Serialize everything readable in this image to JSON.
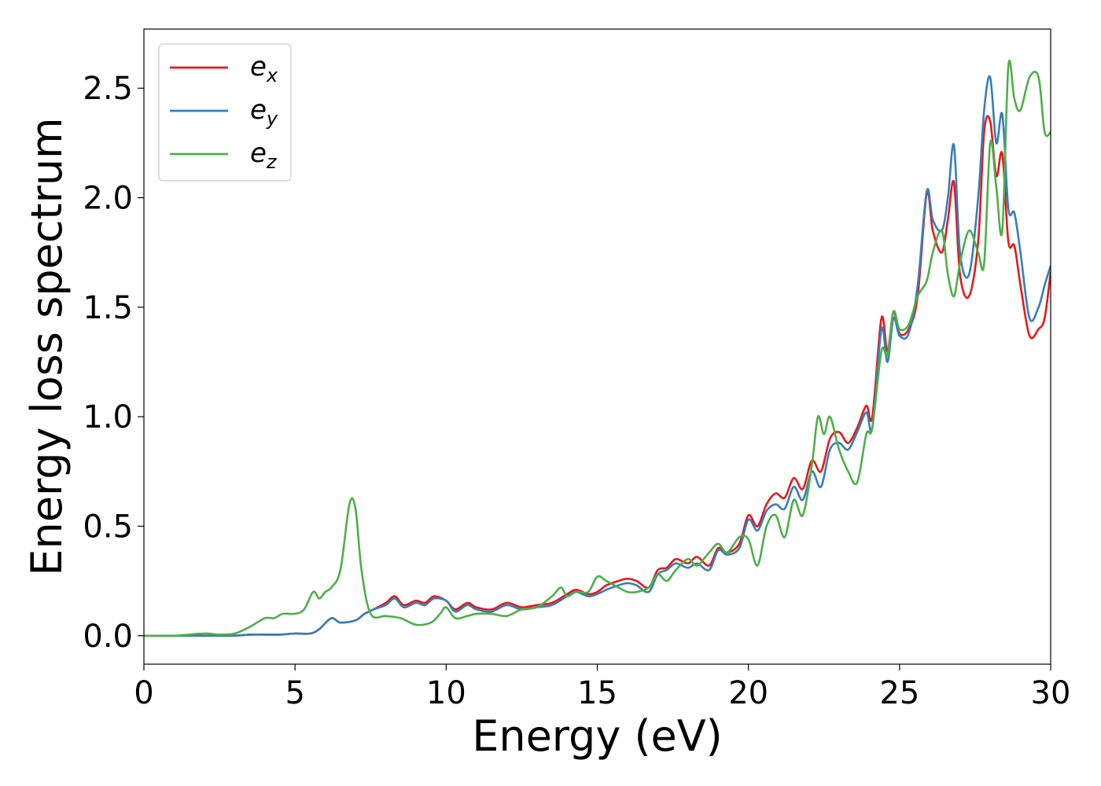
{
  "chart_data": {
    "type": "line",
    "xlabel": "Energy (eV)",
    "ylabel": "Energy loss spectrum",
    "xlim": [
      0,
      30
    ],
    "ylim": [
      -0.13,
      2.77
    ],
    "xticks": [
      "0",
      "5",
      "10",
      "15",
      "20",
      "25",
      "30"
    ],
    "xtick_values": [
      0,
      5,
      10,
      15,
      20,
      25,
      30
    ],
    "yticks": [
      "0.0",
      "0.5",
      "1.0",
      "1.5",
      "2.0",
      "2.5"
    ],
    "ytick_values": [
      0.0,
      0.5,
      1.0,
      1.5,
      2.0,
      2.5
    ],
    "grid": false,
    "legend_position": "top-left",
    "series": [
      {
        "name": "e_x",
        "label_base": "e",
        "label_sub": "x",
        "color": "#e41a1c",
        "x": [
          0,
          1,
          2,
          3,
          3.5,
          4,
          4.5,
          5,
          5.5,
          5.8,
          6.2,
          6.5,
          7,
          7.3,
          7.6,
          8,
          8.3,
          8.6,
          9,
          9.3,
          9.6,
          10,
          10.3,
          10.7,
          11,
          11.5,
          12,
          12.5,
          13,
          13.5,
          14,
          14.3,
          14.7,
          15,
          15.3,
          15.7,
          16,
          16.3,
          16.7,
          17,
          17.3,
          17.6,
          18,
          18.3,
          18.7,
          19,
          19.3,
          19.7,
          20,
          20.3,
          20.6,
          20.9,
          21.2,
          21.5,
          21.8,
          22.1,
          22.4,
          22.7,
          23,
          23.3,
          23.6,
          23.9,
          24.1,
          24.4,
          24.6,
          24.8,
          25,
          25.3,
          25.6,
          25.9,
          26.1,
          26.4,
          26.6,
          26.8,
          27,
          27.3,
          27.6,
          27.8,
          28,
          28.2,
          28.4,
          28.6,
          28.8,
          29,
          29.3,
          29.6,
          29.8,
          30
        ],
        "y": [
          0,
          0,
          0,
          0,
          0.005,
          0.005,
          0.005,
          0.01,
          0.01,
          0.03,
          0.08,
          0.06,
          0.07,
          0.1,
          0.12,
          0.15,
          0.18,
          0.14,
          0.16,
          0.15,
          0.18,
          0.16,
          0.12,
          0.15,
          0.13,
          0.12,
          0.15,
          0.13,
          0.14,
          0.15,
          0.19,
          0.21,
          0.19,
          0.2,
          0.23,
          0.25,
          0.26,
          0.25,
          0.22,
          0.3,
          0.31,
          0.35,
          0.33,
          0.36,
          0.32,
          0.4,
          0.38,
          0.42,
          0.55,
          0.5,
          0.6,
          0.65,
          0.63,
          0.72,
          0.67,
          0.8,
          0.75,
          0.9,
          0.93,
          0.88,
          0.95,
          1.05,
          1.0,
          1.45,
          1.3,
          1.48,
          1.38,
          1.4,
          1.55,
          2.02,
          1.85,
          1.75,
          1.9,
          2.07,
          1.65,
          1.55,
          1.8,
          2.3,
          2.35,
          2.1,
          2.2,
          1.8,
          1.78,
          1.6,
          1.37,
          1.4,
          1.45,
          1.66
        ]
      },
      {
        "name": "e_y",
        "label_base": "e",
        "label_sub": "y",
        "color": "#377eb8",
        "x": [
          0,
          1,
          2,
          3,
          3.5,
          4,
          4.5,
          5,
          5.5,
          5.8,
          6.2,
          6.5,
          7,
          7.3,
          7.6,
          8,
          8.3,
          8.6,
          9,
          9.3,
          9.6,
          10,
          10.3,
          10.7,
          11,
          11.5,
          12,
          12.5,
          13,
          13.5,
          14,
          14.3,
          14.7,
          15,
          15.3,
          15.7,
          16,
          16.3,
          16.7,
          17,
          17.3,
          17.6,
          18,
          18.3,
          18.7,
          19,
          19.3,
          19.7,
          20,
          20.3,
          20.6,
          20.9,
          21.2,
          21.5,
          21.8,
          22.1,
          22.4,
          22.7,
          23,
          23.3,
          23.6,
          23.9,
          24.1,
          24.4,
          24.6,
          24.8,
          25,
          25.3,
          25.6,
          25.9,
          26.1,
          26.4,
          26.6,
          26.8,
          27,
          27.3,
          27.6,
          27.8,
          28,
          28.2,
          28.4,
          28.6,
          28.8,
          29,
          29.3,
          29.6,
          29.8,
          30
        ],
        "y": [
          0,
          0,
          0,
          0,
          0.005,
          0.005,
          0.005,
          0.01,
          0.01,
          0.03,
          0.08,
          0.06,
          0.07,
          0.1,
          0.12,
          0.14,
          0.17,
          0.13,
          0.15,
          0.14,
          0.17,
          0.16,
          0.11,
          0.14,
          0.12,
          0.11,
          0.14,
          0.12,
          0.13,
          0.14,
          0.18,
          0.2,
          0.18,
          0.19,
          0.21,
          0.23,
          0.24,
          0.23,
          0.2,
          0.28,
          0.3,
          0.33,
          0.31,
          0.33,
          0.3,
          0.39,
          0.37,
          0.4,
          0.53,
          0.48,
          0.57,
          0.6,
          0.58,
          0.68,
          0.62,
          0.75,
          0.68,
          0.85,
          0.88,
          0.85,
          0.93,
          1.02,
          0.95,
          1.4,
          1.25,
          1.45,
          1.37,
          1.38,
          1.6,
          2.03,
          1.9,
          1.85,
          2.0,
          2.24,
          1.75,
          1.65,
          2.0,
          2.4,
          2.55,
          2.25,
          2.38,
          1.95,
          1.93,
          1.75,
          1.45,
          1.5,
          1.6,
          1.69
        ]
      },
      {
        "name": "e_z",
        "label_base": "e",
        "label_sub": "z",
        "color": "#4daf4a",
        "x": [
          0,
          1,
          2,
          2.5,
          3,
          3.5,
          4,
          4.3,
          4.6,
          5,
          5.3,
          5.6,
          5.8,
          6,
          6.2,
          6.5,
          6.8,
          7,
          7.2,
          7.5,
          8,
          8.5,
          9,
          9.5,
          9.8,
          10,
          10.3,
          10.7,
          11,
          11.5,
          12,
          12.5,
          13,
          13.5,
          13.8,
          14,
          14.3,
          14.7,
          15,
          15.3,
          15.7,
          16,
          16.3,
          16.7,
          17,
          17.3,
          17.6,
          18,
          18.3,
          18.7,
          19,
          19.3,
          19.7,
          20,
          20.3,
          20.6,
          20.9,
          21.2,
          21.5,
          21.8,
          22.1,
          22.3,
          22.5,
          22.7,
          23,
          23.3,
          23.6,
          23.9,
          24.1,
          24.4,
          24.6,
          24.8,
          25,
          25.3,
          25.6,
          25.9,
          26.1,
          26.4,
          26.6,
          26.8,
          27,
          27.3,
          27.6,
          27.8,
          28,
          28.2,
          28.4,
          28.6,
          28.8,
          29,
          29.3,
          29.6,
          29.8,
          30
        ],
        "y": [
          0,
          0,
          0.01,
          0.005,
          0.01,
          0.04,
          0.08,
          0.08,
          0.1,
          0.1,
          0.12,
          0.2,
          0.17,
          0.2,
          0.22,
          0.3,
          0.6,
          0.58,
          0.3,
          0.1,
          0.09,
          0.08,
          0.05,
          0.06,
          0.1,
          0.13,
          0.08,
          0.09,
          0.1,
          0.1,
          0.09,
          0.12,
          0.13,
          0.18,
          0.22,
          0.18,
          0.2,
          0.2,
          0.27,
          0.25,
          0.22,
          0.2,
          0.2,
          0.22,
          0.28,
          0.25,
          0.3,
          0.35,
          0.32,
          0.38,
          0.42,
          0.38,
          0.45,
          0.44,
          0.32,
          0.5,
          0.55,
          0.45,
          0.62,
          0.55,
          0.78,
          1.0,
          0.92,
          1.0,
          0.85,
          0.75,
          0.7,
          0.92,
          0.95,
          1.3,
          1.28,
          1.48,
          1.4,
          1.42,
          1.55,
          1.62,
          1.75,
          1.85,
          1.65,
          1.55,
          1.7,
          1.85,
          1.75,
          1.7,
          2.25,
          2.05,
          1.85,
          2.6,
          2.45,
          2.4,
          2.55,
          2.55,
          2.3,
          2.3
        ]
      }
    ]
  }
}
